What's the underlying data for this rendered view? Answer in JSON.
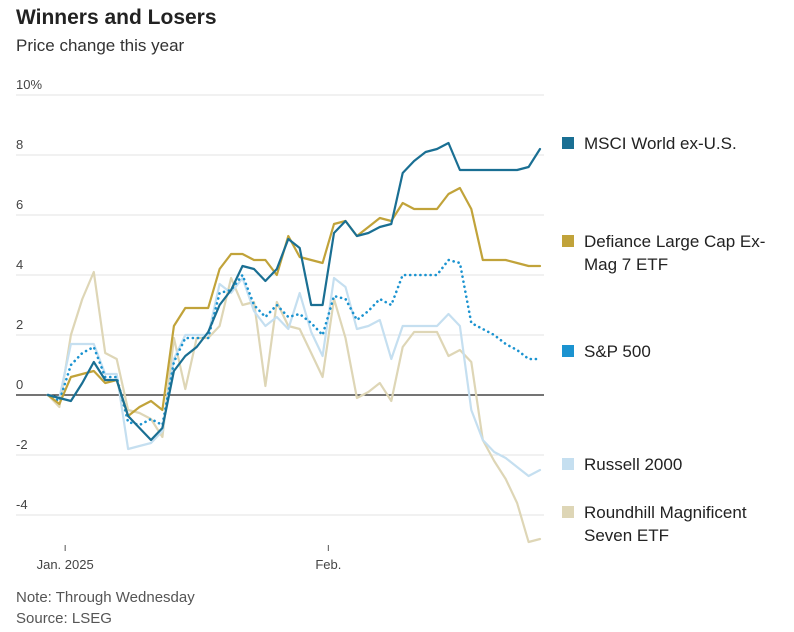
{
  "header": {
    "title": "Winners and Losers",
    "subtitle": "Price change this year"
  },
  "footer": {
    "note": "Note: Through Wednesday",
    "source": "Source: LSEG"
  },
  "chart_data": {
    "type": "line",
    "title": "Winners and Losers",
    "subtitle": "Price change this year",
    "xlabel": "",
    "ylabel": "",
    "ylim": [
      -5,
      10
    ],
    "xlim": [
      0,
      43
    ],
    "y_ticks": [
      {
        "value": 10,
        "label": "10%"
      },
      {
        "value": 8,
        "label": "8"
      },
      {
        "value": 6,
        "label": "6"
      },
      {
        "value": 4,
        "label": "4"
      },
      {
        "value": 2,
        "label": "2"
      },
      {
        "value": 0,
        "label": "0"
      },
      {
        "value": -2,
        "label": "-2"
      },
      {
        "value": -4,
        "label": "-4"
      }
    ],
    "x_ticks": [
      {
        "value": 1.5,
        "label": "Jan. 2025"
      },
      {
        "value": 24.5,
        "label": "Feb."
      }
    ],
    "grid": true,
    "legend": "right",
    "series": [
      {
        "name": "Roundhill Magnificent Seven ETF",
        "legend_lines": [
          "Roundhill Magnificent",
          "Seven ETF"
        ],
        "color": "#ded6b6",
        "style": "solid",
        "x": [
          0,
          1,
          2,
          3,
          4,
          5,
          6,
          7,
          8,
          9,
          10,
          11,
          12,
          13,
          14,
          15,
          16,
          17,
          18,
          19,
          20,
          21,
          22,
          23,
          24,
          25,
          26,
          27,
          28,
          29,
          30,
          31,
          32,
          33,
          34,
          35,
          36,
          37,
          38,
          39,
          40,
          41,
          42,
          43
        ],
        "y": [
          0,
          -0.4,
          2.0,
          3.2,
          4.1,
          1.4,
          1.2,
          -0.5,
          -0.6,
          -0.8,
          -1.4,
          1.9,
          0.2,
          1.9,
          1.9,
          2.3,
          3.9,
          3.0,
          3.1,
          0.3,
          3.1,
          2.3,
          2.2,
          1.4,
          0.6,
          3.2,
          1.9,
          -0.1,
          0.1,
          0.4,
          -0.2,
          1.6,
          2.1,
          2.1,
          2.1,
          1.3,
          1.5,
          1.1,
          -1.5,
          -2.2,
          -2.8,
          -3.6,
          -4.9,
          -4.8
        ]
      },
      {
        "name": "Russell 2000",
        "legend_lines": [
          "Russell 2000"
        ],
        "color": "#c5dff0",
        "style": "solid",
        "x": [
          0,
          1,
          2,
          3,
          4,
          5,
          6,
          7,
          8,
          9,
          10,
          11,
          12,
          13,
          14,
          15,
          16,
          17,
          18,
          19,
          20,
          21,
          22,
          23,
          24,
          25,
          26,
          27,
          28,
          29,
          30,
          31,
          32,
          33,
          34,
          35,
          36,
          37,
          38,
          39,
          40,
          41,
          42,
          43
        ],
        "y": [
          0,
          -0.1,
          1.7,
          1.7,
          1.7,
          0.7,
          0.7,
          -1.8,
          -1.7,
          -1.6,
          -1.2,
          1.2,
          2.0,
          2.0,
          2.0,
          3.7,
          3.4,
          3.9,
          2.8,
          2.3,
          2.6,
          2.2,
          3.4,
          2.1,
          1.3,
          3.9,
          3.6,
          2.2,
          2.3,
          2.5,
          1.2,
          2.3,
          2.3,
          2.3,
          2.3,
          2.7,
          2.3,
          -0.5,
          -1.5,
          -1.9,
          -2.1,
          -2.4,
          -2.7,
          -2.5
        ]
      },
      {
        "name": "S&P 500",
        "legend_lines": [
          "S&P 500"
        ],
        "color": "#1b93d0",
        "style": "dotted",
        "x": [
          0,
          1,
          2,
          3,
          4,
          5,
          6,
          7,
          8,
          9,
          10,
          11,
          12,
          13,
          14,
          15,
          16,
          17,
          18,
          19,
          20,
          21,
          22,
          23,
          24,
          25,
          26,
          27,
          28,
          29,
          30,
          31,
          32,
          33,
          34,
          35,
          36,
          37,
          38,
          39,
          40,
          41,
          42,
          43
        ],
        "y": [
          0,
          -0.2,
          1.0,
          1.4,
          1.6,
          0.6,
          0.6,
          -0.9,
          -1.0,
          -0.8,
          -1.0,
          1.1,
          1.9,
          1.9,
          1.9,
          3.4,
          3.5,
          4.0,
          3.0,
          2.6,
          3.0,
          2.6,
          2.7,
          2.4,
          2.0,
          3.3,
          3.2,
          2.5,
          2.8,
          3.2,
          3.0,
          4.0,
          4.0,
          4.0,
          4.0,
          4.5,
          4.4,
          2.4,
          2.2,
          2.0,
          1.7,
          1.5,
          1.2,
          1.2
        ]
      },
      {
        "name": "Defiance Large Cap Ex-Mag 7 ETF",
        "legend_lines": [
          "Defiance Large Cap Ex-",
          "Mag 7 ETF"
        ],
        "color": "#c1a33a",
        "style": "solid",
        "x": [
          0,
          1,
          2,
          3,
          4,
          5,
          6,
          7,
          8,
          9,
          10,
          11,
          12,
          13,
          14,
          15,
          16,
          17,
          18,
          19,
          20,
          21,
          22,
          23,
          24,
          25,
          26,
          27,
          28,
          29,
          30,
          31,
          32,
          33,
          34,
          35,
          36,
          37,
          38,
          39,
          40,
          41,
          42,
          43
        ],
        "y": [
          0,
          -0.3,
          0.6,
          0.7,
          0.8,
          0.4,
          0.5,
          -0.7,
          -0.4,
          -0.2,
          -0.5,
          2.3,
          2.9,
          2.9,
          2.9,
          4.2,
          4.7,
          4.7,
          4.5,
          4.5,
          4.0,
          5.3,
          4.6,
          4.5,
          4.4,
          5.7,
          5.8,
          5.3,
          5.6,
          5.9,
          5.8,
          6.4,
          6.2,
          6.2,
          6.2,
          6.7,
          6.9,
          6.2,
          4.5,
          4.5,
          4.5,
          4.4,
          4.3,
          4.3
        ]
      },
      {
        "name": "MSCI World ex-U.S.",
        "legend_lines": [
          "MSCI World ex-U.S."
        ],
        "color": "#1a6f93",
        "style": "solid",
        "x": [
          0,
          1,
          2,
          3,
          4,
          5,
          6,
          7,
          8,
          9,
          10,
          11,
          12,
          13,
          14,
          15,
          16,
          17,
          18,
          19,
          20,
          21,
          22,
          23,
          24,
          25,
          26,
          27,
          28,
          29,
          30,
          31,
          32,
          33,
          34,
          35,
          36,
          37,
          38,
          39,
          40,
          41,
          42,
          43
        ],
        "y": [
          0,
          -0.1,
          -0.2,
          0.4,
          1.1,
          0.5,
          0.5,
          -0.7,
          -1.1,
          -1.5,
          -1.1,
          0.8,
          1.3,
          1.6,
          2.1,
          3.0,
          3.5,
          4.3,
          4.2,
          3.8,
          4.2,
          5.2,
          4.9,
          3.0,
          3.0,
          5.4,
          5.8,
          5.3,
          5.4,
          5.6,
          5.7,
          7.4,
          7.8,
          8.1,
          8.2,
          8.4,
          7.5,
          7.5,
          7.5,
          7.5,
          7.5,
          7.5,
          7.6,
          8.2
        ]
      }
    ]
  }
}
